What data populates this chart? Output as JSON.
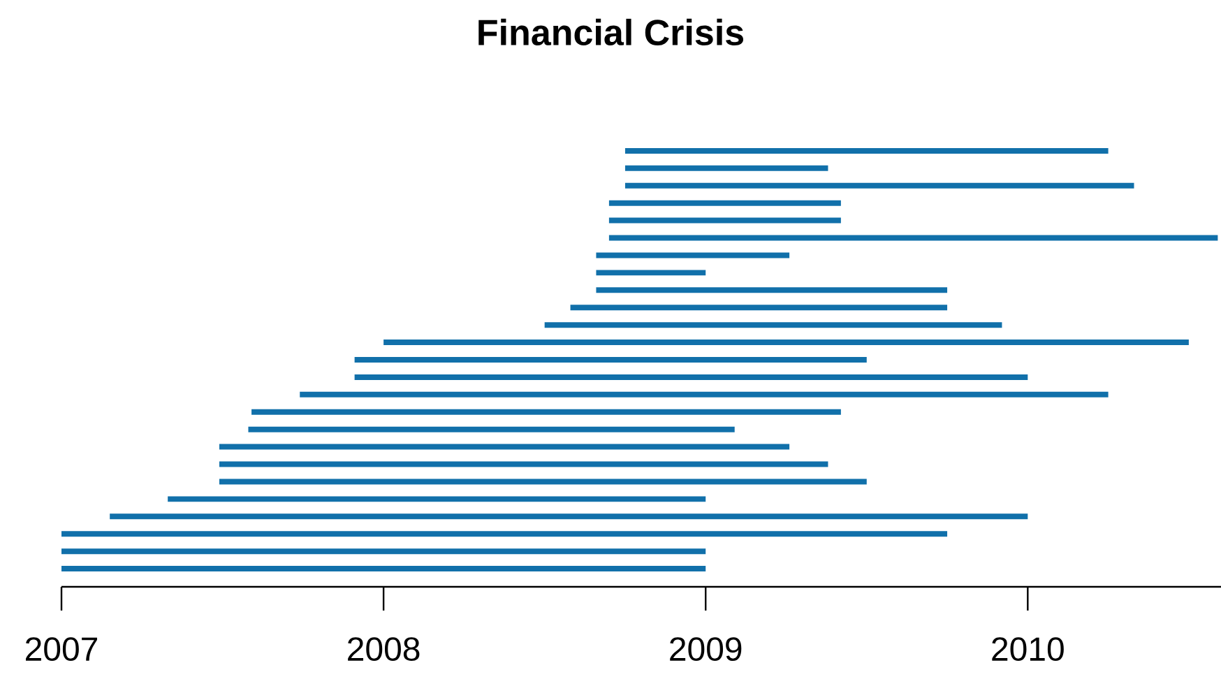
{
  "chart_data": {
    "type": "bar",
    "orientation": "horizontal",
    "title": "Financial Crisis",
    "categories": [
      null,
      null,
      null,
      null,
      null,
      null,
      null,
      null,
      null,
      null,
      null,
      null,
      null,
      null,
      null,
      null,
      null,
      null,
      null,
      null,
      null,
      null,
      null,
      null,
      null
    ],
    "base": [
      2008.75,
      2008.75,
      2008.75,
      2008.7,
      2008.7,
      2008.7,
      2008.66,
      2008.66,
      2008.66,
      2008.58,
      2008.5,
      2008.0,
      2007.91,
      2007.91,
      2007.74,
      2007.59,
      2007.58,
      2007.49,
      2007.49,
      2007.49,
      2007.33,
      2007.15,
      2007.0,
      2007.0,
      2007.0
    ],
    "values": [
      1.5,
      0.63,
      1.58,
      0.72,
      0.72,
      1.89,
      0.6,
      0.34,
      1.09,
      1.17,
      1.42,
      2.5,
      1.59,
      2.09,
      2.51,
      1.83,
      1.51,
      1.77,
      1.89,
      2.01,
      1.67,
      2.85,
      2.75,
      2.0,
      2.0
    ],
    "color": "#1170aa",
    "xlim": [
      2007,
      2010.6
    ],
    "xticks": [
      2007,
      2008,
      2009,
      2010
    ]
  }
}
